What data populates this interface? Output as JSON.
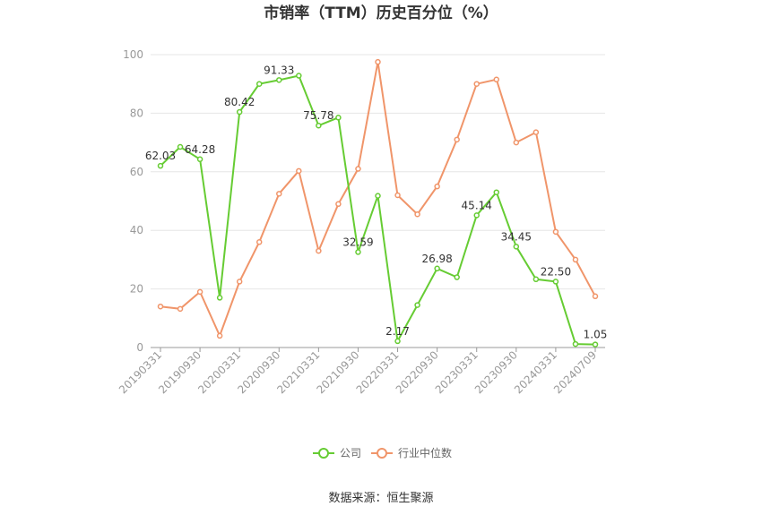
{
  "chart_data": {
    "type": "line",
    "title": "市销率（TTM）历史百分位（%）",
    "source": "数据来源：恒生聚源",
    "ylim": [
      0,
      100
    ],
    "yticks": [
      0,
      20,
      40,
      60,
      80,
      100
    ],
    "grid": true,
    "legend_position": "bottom",
    "x_tick_labels": [
      "20190331",
      "20190930",
      "20200331",
      "20200930",
      "20210331",
      "20210930",
      "20220331",
      "20220930",
      "20230331",
      "20230930",
      "20240331",
      "20240709"
    ],
    "x": [
      "20190331",
      "20190630",
      "20190930",
      "20191231",
      "20200331",
      "20200630",
      "20200930",
      "20201231",
      "20210331",
      "20210630",
      "20210930",
      "20211231",
      "20220331",
      "20220630",
      "20220930",
      "20221231",
      "20230331",
      "20230630",
      "20230930",
      "20231231",
      "20240331",
      "20240630",
      "20240709"
    ],
    "series": [
      {
        "name": "公司",
        "color": "#66cc33",
        "values": [
          62.03,
          68.5,
          64.28,
          17.0,
          80.42,
          90.0,
          91.33,
          92.8,
          75.78,
          78.5,
          32.59,
          51.8,
          2.17,
          14.5,
          26.98,
          24.0,
          45.14,
          53.0,
          34.45,
          23.3,
          22.5,
          1.2,
          1.05
        ],
        "labels": {
          "0": "62.03",
          "2": "64.28",
          "4": "80.42",
          "6": "91.33",
          "8": "75.78",
          "10": "32.59",
          "12": "2.17",
          "14": "26.98",
          "16": "45.14",
          "18": "34.45",
          "20": "22.50",
          "22": "1.05"
        }
      },
      {
        "name": "行业中位数",
        "color": "#f0956a",
        "values": [
          14.0,
          13.2,
          19.0,
          4.0,
          22.5,
          36.0,
          52.5,
          60.3,
          33.0,
          49.0,
          61.0,
          97.5,
          52.0,
          45.5,
          55.0,
          71.0,
          90.0,
          91.5,
          70.0,
          73.5,
          39.5,
          30.0,
          17.5
        ]
      }
    ]
  }
}
